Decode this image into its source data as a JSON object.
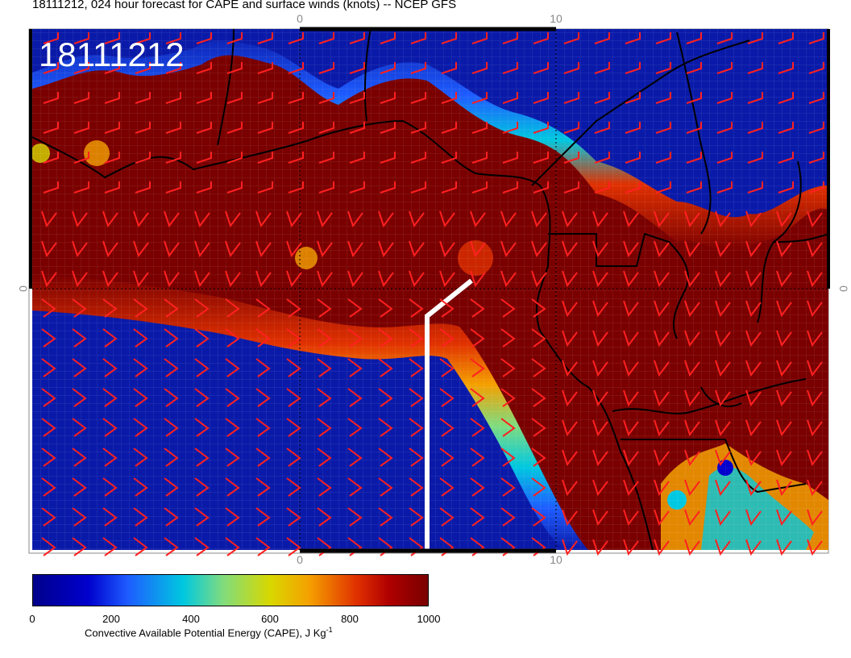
{
  "title": "18111212, 024 hour forecast for CAPE and surface winds (knots) -- NCEP GFS",
  "stamp": "18111212",
  "axis": {
    "top_ticks": [
      "0",
      "10"
    ],
    "bottom_ticks": [
      "0",
      "10"
    ],
    "left_tick": "0",
    "right_tick": "0"
  },
  "colorbar": {
    "ticks": [
      "0",
      "200",
      "400",
      "600",
      "800",
      "1000"
    ],
    "label_main": "Convective Available Potential Energy (CAPE), J Kg",
    "label_sup": "-1",
    "colors": [
      "#00008b",
      "#0000cd",
      "#00c8e0",
      "#d8d800",
      "#f5a000",
      "#b00000",
      "#7a0000"
    ]
  },
  "colors": {
    "high_cape": "#7a0000",
    "low_cape": "#0a1aa8",
    "wind_barb": "#ff2020",
    "coast": "#000000"
  }
}
